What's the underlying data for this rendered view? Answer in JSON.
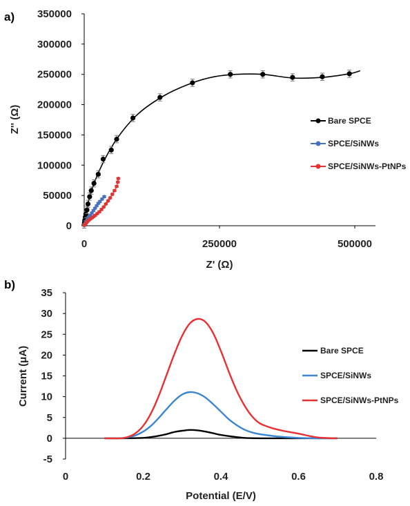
{
  "panel_labels": {
    "a": "a)",
    "b": "b)"
  },
  "chart_data": [
    {
      "type": "scatter",
      "panel": "a)",
      "xlabel": "Z' (Ω)",
      "ylabel": "Z'' (Ω)",
      "xlim": [
        0,
        500000
      ],
      "ylim": [
        0,
        350000
      ],
      "x_ticks": [
        "0",
        "250000",
        "500000"
      ],
      "y_ticks": [
        "0",
        "50000",
        "100000",
        "150000",
        "200000",
        "250000",
        "300000",
        "350000"
      ],
      "grid": false,
      "legend_position": "right",
      "series": [
        {
          "name": "Bare SPCE",
          "color": "#000000",
          "points": [
            [
              0,
              2000
            ],
            [
              500,
              5000
            ],
            [
              1000,
              9000
            ],
            [
              2000,
              14000
            ],
            [
              3000,
              19000
            ],
            [
              5000,
              26000
            ],
            [
              7000,
              36000
            ],
            [
              10000,
              48000
            ],
            [
              13000,
              58000
            ],
            [
              18000,
              70000
            ],
            [
              26000,
              85000
            ],
            [
              35000,
              110000
            ],
            [
              50000,
              125000
            ],
            [
              60000,
              143000
            ],
            [
              90000,
              178000
            ],
            [
              140000,
              212000
            ],
            [
              200000,
              236000
            ],
            [
              270000,
              250000
            ],
            [
              330000,
              250000
            ],
            [
              385000,
              245000
            ],
            [
              440000,
              246000
            ],
            [
              490000,
              251000
            ]
          ],
          "curve": [
            [
              0,
              0
            ],
            [
              10000,
              48000
            ],
            [
              30000,
              95000
            ],
            [
              60000,
              143000
            ],
            [
              100000,
              185000
            ],
            [
              150000,
              216000
            ],
            [
              200000,
              236000
            ],
            [
              240000,
              246000
            ],
            [
              280000,
              250000
            ],
            [
              330000,
              250000
            ],
            [
              385000,
              244000
            ],
            [
              440000,
              245000
            ],
            [
              490000,
              251000
            ],
            [
              510000,
              256000
            ]
          ],
          "error": 6000
        },
        {
          "name": "SPCE/SiNWs",
          "color": "#4472C4",
          "points": [
            [
              0,
              1500
            ],
            [
              2000,
              4000
            ],
            [
              4000,
              7000
            ],
            [
              6000,
              10000
            ],
            [
              8000,
              14000
            ],
            [
              11000,
              17000
            ],
            [
              14000,
              21000
            ],
            [
              17000,
              25000
            ],
            [
              20000,
              29000
            ],
            [
              23000,
              33000
            ],
            [
              26000,
              37000
            ],
            [
              29000,
              40000
            ],
            [
              33000,
              44000
            ],
            [
              37000,
              48000
            ]
          ],
          "error": 1500
        },
        {
          "name": "SPCE/SiNWs-PtNPs",
          "color": "#E83030",
          "points": [
            [
              0,
              1000
            ],
            [
              2000,
              3000
            ],
            [
              4000,
              5000
            ],
            [
              6000,
              7000
            ],
            [
              8000,
              9000
            ],
            [
              11000,
              11000
            ],
            [
              14000,
              13000
            ],
            [
              17000,
              15000
            ],
            [
              20000,
              17000
            ],
            [
              24000,
              20000
            ],
            [
              28000,
              23000
            ],
            [
              32000,
              27000
            ],
            [
              36000,
              31000
            ],
            [
              40000,
              36000
            ],
            [
              44000,
              41000
            ],
            [
              48000,
              46000
            ],
            [
              52000,
              52000
            ],
            [
              56000,
              58000
            ],
            [
              60000,
              65000
            ],
            [
              62000,
              72000
            ],
            [
              63000,
              78000
            ]
          ],
          "error": 1500
        }
      ]
    },
    {
      "type": "line",
      "panel": "b)",
      "xlabel": "Potential (E/V)",
      "ylabel": "Current (μA)",
      "xlim": [
        0,
        0.8
      ],
      "ylim": [
        -5,
        35
      ],
      "x_ticks": [
        "0",
        "0.2",
        "0.4",
        "0.6",
        "0.8"
      ],
      "y_ticks": [
        "-5",
        "0",
        "5",
        "10",
        "15",
        "20",
        "25",
        "30",
        "35"
      ],
      "grid": false,
      "legend_position": "right",
      "series": [
        {
          "name": "Bare SPCE",
          "color": "#000000",
          "x": [
            0.1,
            0.15,
            0.2,
            0.22,
            0.24,
            0.26,
            0.28,
            0.3,
            0.32,
            0.34,
            0.36,
            0.38,
            0.4,
            0.43,
            0.46,
            0.5,
            0.55,
            0.6,
            0.65,
            0.7
          ],
          "values": [
            0,
            0,
            0.1,
            0.3,
            0.6,
            1.0,
            1.5,
            1.8,
            2.0,
            1.9,
            1.6,
            1.2,
            0.8,
            0.4,
            0.1,
            0,
            0,
            0,
            0,
            0
          ]
        },
        {
          "name": "SPCE/SiNWs",
          "color": "#3A86D0",
          "x": [
            0.1,
            0.14,
            0.16,
            0.18,
            0.2,
            0.22,
            0.24,
            0.26,
            0.28,
            0.3,
            0.32,
            0.34,
            0.36,
            0.38,
            0.4,
            0.42,
            0.44,
            0.46,
            0.48,
            0.5,
            0.55,
            0.6,
            0.65,
            0.7
          ],
          "values": [
            0,
            0,
            0.2,
            0.7,
            1.6,
            3.0,
            4.9,
            7.0,
            9.0,
            10.5,
            11.1,
            10.8,
            9.8,
            8.2,
            6.4,
            4.6,
            3.2,
            2.1,
            1.4,
            1.0,
            0.4,
            0.1,
            0,
            0
          ]
        },
        {
          "name": "SPCE/SiNWs-PtNPs",
          "color": "#E83030",
          "x": [
            0.1,
            0.14,
            0.16,
            0.18,
            0.2,
            0.22,
            0.24,
            0.26,
            0.28,
            0.3,
            0.32,
            0.34,
            0.36,
            0.38,
            0.4,
            0.42,
            0.44,
            0.46,
            0.48,
            0.5,
            0.53,
            0.56,
            0.6,
            0.65,
            0.7
          ],
          "values": [
            0,
            0,
            0.3,
            1.2,
            3.0,
            6.0,
            10.2,
            15.2,
            20.2,
            24.6,
            27.6,
            28.7,
            28.0,
            25.3,
            21.0,
            16.1,
            11.6,
            8.0,
            5.3,
            3.6,
            2.5,
            1.8,
            1.1,
            0.2,
            0
          ]
        }
      ]
    }
  ]
}
